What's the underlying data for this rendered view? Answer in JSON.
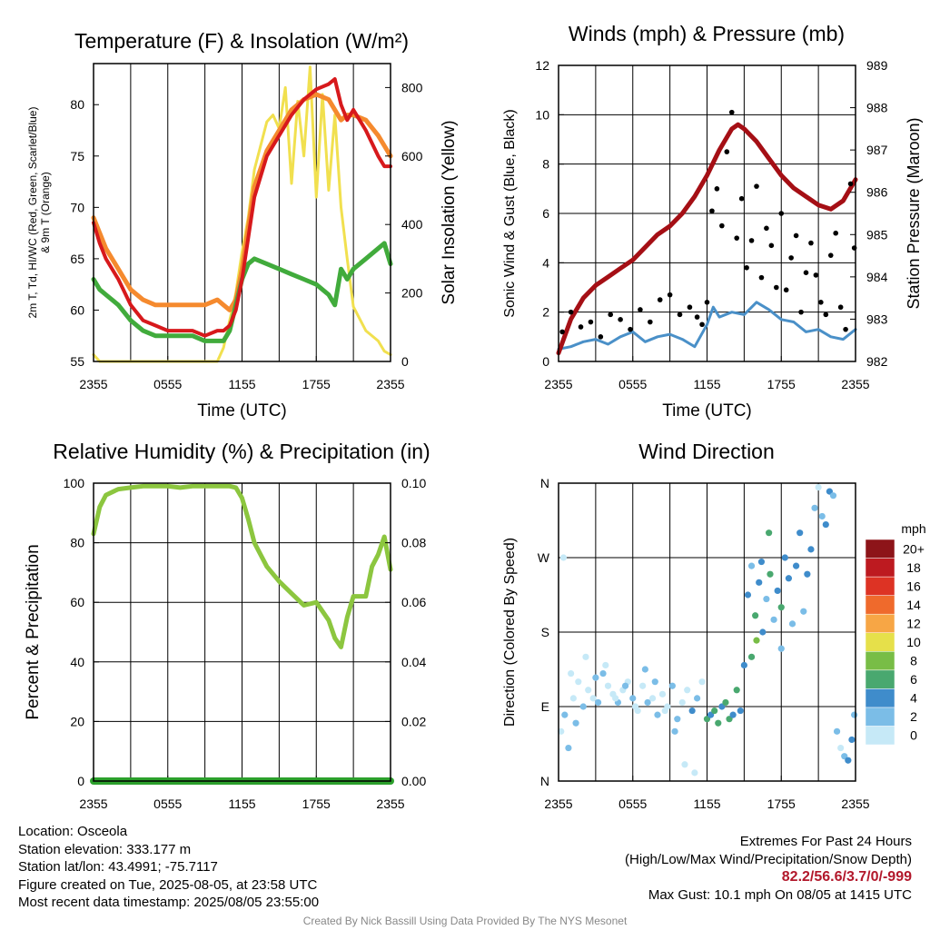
{
  "credit": "Created By Nick Bassill Using Data Provided By The NYS Mesonet",
  "info_left": [
    "Location: Osceola",
    "Station elevation: 333.177 m",
    "Station lat/lon: 43.4991; -75.7117",
    "Figure created on Tue, 2025-08-05, at 23:58 UTC",
    "Most recent data timestamp: 2025/08/05 23:55:00"
  ],
  "info_right": {
    "line1": "Extremes For Past 24 Hours",
    "line2": "(High/Low/Max Wind/Precipitation/Snow Depth)",
    "extremes": "82.2/56.6/3.7/0/-999",
    "gust": "Max Gust: 10.1 mph On 08/05 at 1415 UTC"
  },
  "colors": {
    "temp": "#d7191c",
    "dew": "#41ab3c",
    "hiwc": "#d7191c",
    "t9m": "#f58a2e",
    "solar": "#f1e04f",
    "wind": "#4a90c8",
    "gust": "#000000",
    "pressure": "#a50f15",
    "rh": "#8cc63f",
    "precip": "#2ca02c"
  },
  "chart_data": [
    {
      "id": "temp",
      "type": "line",
      "title": "Temperature (F) & Insolation (W/m²)",
      "xlabel": "Time (UTC)",
      "ylabel_left": "2m T, Td, HI/WC (Red, Green, Scarlet/Blue) & 9m T (Orange)",
      "ylabel_right": "Solar Insolation (Yellow)",
      "x_ticks": [
        "2355",
        "0555",
        "1155",
        "1755",
        "2355"
      ],
      "ylim": [
        55,
        84
      ],
      "y_ticks": [
        55,
        60,
        65,
        70,
        75,
        80
      ],
      "ylim_right": [
        0,
        870
      ],
      "y_ticks_right": [
        0,
        200,
        400,
        600,
        800
      ],
      "series": [
        {
          "key": "t9m",
          "x": [
            0,
            0.5,
            1,
            2,
            3,
            4,
            5,
            6,
            7,
            8,
            9,
            10,
            10.5,
            11,
            11.5,
            12,
            12.5,
            13,
            14,
            15,
            16,
            17,
            18,
            19,
            19.5,
            20,
            20.5,
            21,
            22,
            23,
            23.5,
            24
          ],
          "y": [
            69,
            67.5,
            66,
            64,
            62,
            61,
            60.5,
            60.5,
            60.5,
            60.5,
            60.5,
            61,
            60.5,
            60,
            61,
            64,
            68,
            72,
            75.5,
            77.5,
            79.5,
            80.5,
            81,
            80.5,
            79.5,
            78.5,
            79,
            79,
            78.5,
            77,
            76,
            75
          ]
        },
        {
          "key": "temp",
          "x": [
            0,
            0.5,
            1,
            2,
            3,
            4,
            5,
            6,
            7,
            8,
            9,
            10,
            10.5,
            11,
            11.5,
            12,
            12.5,
            13,
            14,
            15,
            16,
            17,
            18,
            19,
            19.5,
            20,
            20.5,
            21,
            22,
            23,
            23.5,
            24
          ],
          "y": [
            68.5,
            66.5,
            65,
            63,
            60.5,
            59,
            58.5,
            58,
            58,
            58,
            57.5,
            58,
            58,
            58.5,
            60,
            63,
            67,
            71,
            75,
            77,
            79,
            80.5,
            81.5,
            82,
            82.5,
            80,
            78.5,
            79.5,
            77.5,
            75,
            74,
            74
          ]
        },
        {
          "key": "dew",
          "x": [
            0,
            0.5,
            1,
            2,
            3,
            4,
            5,
            6,
            7,
            8,
            9,
            10,
            10.5,
            11,
            11.5,
            12,
            12.5,
            13,
            14,
            15,
            16,
            17,
            18,
            19,
            19.5,
            20,
            20.5,
            21,
            22,
            23,
            23.5,
            24
          ],
          "y": [
            63,
            62,
            61.5,
            60.5,
            59,
            58,
            57.5,
            57.5,
            57.5,
            57.5,
            57,
            57,
            57,
            58,
            60.5,
            63,
            64.5,
            65,
            64.5,
            64,
            63.5,
            63,
            62.5,
            61.5,
            60.5,
            64,
            63,
            64,
            65,
            66,
            66.5,
            64.5
          ]
        },
        {
          "key": "solar",
          "axis": "right",
          "x": [
            0,
            0.5,
            1,
            2,
            3,
            4,
            5,
            6,
            7,
            8,
            9,
            10,
            10.5,
            11,
            11.5,
            12,
            12.5,
            13,
            14,
            14.5,
            15,
            15.5,
            16,
            16.5,
            17,
            17.5,
            18,
            18.5,
            19,
            19.5,
            20,
            20.5,
            21,
            22,
            23,
            23.5,
            24
          ],
          "y": [
            20,
            0,
            0,
            0,
            0,
            0,
            0,
            0,
            0,
            0,
            0,
            0,
            40,
            120,
            200,
            320,
            420,
            560,
            700,
            720,
            680,
            800,
            520,
            760,
            600,
            860,
            480,
            780,
            500,
            720,
            450,
            300,
            160,
            90,
            60,
            30,
            20
          ]
        }
      ]
    },
    {
      "id": "wind",
      "type": "line",
      "title": "Winds (mph) & Pressure (mb)",
      "xlabel": "Time (UTC)",
      "ylabel_left": "Sonic Wind & Gust (Blue, Black)",
      "ylabel_right": "Station Pressure (Maroon)",
      "x_ticks": [
        "2355",
        "0555",
        "1155",
        "1755",
        "2355"
      ],
      "ylim": [
        0,
        12
      ],
      "y_ticks": [
        0,
        2,
        4,
        6,
        8,
        10,
        12
      ],
      "ylim_right": [
        982,
        989
      ],
      "y_ticks_right": [
        982,
        983,
        984,
        985,
        986,
        987,
        988,
        989
      ],
      "series": [
        {
          "key": "wind",
          "x": [
            0,
            1,
            2,
            3,
            4,
            5,
            6,
            7,
            8,
            9,
            10,
            11,
            12,
            12.5,
            13,
            14,
            15,
            16,
            17,
            18,
            19,
            20,
            21,
            22,
            23,
            24
          ],
          "y": [
            0.5,
            0.6,
            0.8,
            0.9,
            0.7,
            1.0,
            1.2,
            0.8,
            1.0,
            1.1,
            0.9,
            0.6,
            1.5,
            2.2,
            1.8,
            2.0,
            1.9,
            2.4,
            2.1,
            1.7,
            1.6,
            1.2,
            1.3,
            1.0,
            0.9,
            1.3
          ]
        },
        {
          "key": "pressure",
          "axis": "right",
          "x": [
            0,
            1,
            2,
            3,
            4,
            5,
            6,
            7,
            8,
            9,
            10,
            11,
            12,
            13,
            14,
            14.5,
            15,
            16,
            17,
            18,
            19,
            20,
            21,
            22,
            23,
            24
          ],
          "y": [
            982.2,
            983.0,
            983.5,
            983.8,
            984.0,
            984.2,
            984.4,
            984.7,
            985.0,
            985.2,
            985.5,
            985.9,
            986.4,
            987.0,
            987.5,
            987.6,
            987.5,
            987.2,
            986.8,
            986.4,
            986.1,
            985.9,
            985.7,
            985.6,
            985.8,
            986.3
          ]
        }
      ],
      "gust_points": {
        "x": [
          0.3,
          1.0,
          1.8,
          2.6,
          3.4,
          4.2,
          5.0,
          5.8,
          6.6,
          7.4,
          8.2,
          9.0,
          9.8,
          10.6,
          11.2,
          11.6,
          12.0,
          12.4,
          12.8,
          13.2,
          13.6,
          14.0,
          14.4,
          14.8,
          15.2,
          15.6,
          16.0,
          16.4,
          16.8,
          17.2,
          17.6,
          18.0,
          18.4,
          18.8,
          19.2,
          19.6,
          20.0,
          20.4,
          20.8,
          21.2,
          21.6,
          22.0,
          22.4,
          22.8,
          23.2,
          23.6,
          23.9
        ],
        "y": [
          1.2,
          2.0,
          1.4,
          1.6,
          1.0,
          1.9,
          1.7,
          1.3,
          2.1,
          1.6,
          2.5,
          2.7,
          1.9,
          2.2,
          1.8,
          1.5,
          2.4,
          6.1,
          7.0,
          5.5,
          8.5,
          10.1,
          5.0,
          6.6,
          3.8,
          4.9,
          7.1,
          3.4,
          5.4,
          4.7,
          3.0,
          6.0,
          2.9,
          4.2,
          5.1,
          2.0,
          3.6,
          4.8,
          3.5,
          2.4,
          1.9,
          4.3,
          5.2,
          2.2,
          1.3,
          7.2,
          4.6
        ]
      }
    },
    {
      "id": "rh",
      "type": "line",
      "title": "Relative Humidity (%) & Precipitation (in)",
      "xlabel": "",
      "ylabel_left": "Percent & Precipitation",
      "x_ticks": [
        "2355",
        "0555",
        "1155",
        "1755",
        "2355"
      ],
      "ylim": [
        0,
        100
      ],
      "y_ticks": [
        0,
        20,
        40,
        60,
        80,
        100
      ],
      "ylim_right": [
        0,
        0.1
      ],
      "y_ticks_right": [
        "0.00",
        "0.02",
        "0.04",
        "0.06",
        "0.08",
        "0.10"
      ],
      "series": [
        {
          "key": "rh",
          "x": [
            0,
            0.5,
            1,
            2,
            3,
            4,
            5,
            6,
            7,
            8,
            9,
            10,
            11,
            11.5,
            12,
            12.5,
            13,
            14,
            15,
            16,
            16.5,
            17,
            18,
            19,
            19.5,
            20,
            20.5,
            21,
            22,
            22.5,
            23,
            23.5,
            24
          ],
          "y": [
            83,
            92,
            96,
            98,
            98.5,
            99,
            99,
            99,
            98.5,
            99,
            99,
            99,
            99,
            98.5,
            95,
            88,
            80,
            72,
            67,
            63,
            61,
            59,
            60,
            54,
            48,
            45,
            55,
            62,
            62,
            72,
            76,
            82,
            71
          ]
        },
        {
          "key": "precip",
          "x": [
            0,
            24
          ],
          "y": [
            0,
            0
          ]
        }
      ]
    },
    {
      "id": "dir",
      "type": "scatter",
      "title": "Wind Direction",
      "ylabel_left": "Direction (Colored By Speed)",
      "x_ticks": [
        "2355",
        "0555",
        "1155",
        "1755",
        "2355"
      ],
      "y_ticks": [
        "N",
        "E",
        "S",
        "W",
        "N"
      ],
      "ylim": [
        0,
        360
      ],
      "legend_title": "mph",
      "legend_labels": [
        "0",
        "2",
        "4",
        "6",
        "8",
        "10",
        "12",
        "14",
        "16",
        "18",
        "20+"
      ],
      "legend_colors": [
        "#c6e9f7",
        "#7bbde7",
        "#3f8ccb",
        "#49a86f",
        "#78bd46",
        "#e6e04a",
        "#f7a645",
        "#ef6a2c",
        "#dd3324",
        "#bd1a20",
        "#8d1419"
      ],
      "points": {
        "x": [
          0.2,
          0.5,
          0.8,
          1.2,
          1.6,
          2.0,
          2.4,
          2.8,
          3.2,
          3.6,
          4.0,
          4.4,
          4.8,
          5.2,
          5.6,
          6.0,
          6.4,
          6.8,
          7.2,
          7.6,
          8.0,
          8.4,
          8.8,
          9.2,
          9.6,
          10.0,
          10.4,
          10.8,
          11.2,
          11.6,
          12.0,
          12.3,
          12.6,
          12.9,
          13.2,
          13.5,
          13.8,
          14.1,
          14.4,
          14.7,
          15.0,
          15.3,
          15.6,
          15.9,
          16.2,
          16.5,
          16.8,
          17.1,
          17.4,
          17.7,
          18.0,
          18.3,
          18.6,
          18.9,
          19.2,
          19.5,
          19.8,
          20.1,
          20.4,
          20.7,
          21.0,
          21.3,
          21.6,
          21.9,
          22.2,
          22.5,
          22.8,
          23.1,
          23.4,
          23.7,
          23.9,
          0.4,
          1.0,
          1.4,
          2.2,
          3.0,
          3.8,
          4.6,
          5.4,
          6.2,
          7.0,
          7.8,
          8.6,
          9.4,
          10.2,
          11.0,
          15.6,
          16.0,
          16.4,
          17.0,
          18.0
        ],
        "y": [
          60,
          80,
          40,
          100,
          120,
          90,
          110,
          100,
          95,
          130,
          115,
          105,
          95,
          110,
          120,
          100,
          85,
          115,
          95,
          100,
          80,
          105,
          90,
          115,
          75,
          95,
          110,
          85,
          100,
          120,
          75,
          80,
          85,
          70,
          90,
          95,
          75,
          80,
          110,
          85,
          140,
          225,
          260,
          200,
          240,
          180,
          220,
          250,
          195,
          230,
          210,
          270,
          245,
          190,
          260,
          300,
          205,
          250,
          280,
          330,
          355,
          320,
          310,
          350,
          345,
          60,
          40,
          30,
          25,
          50,
          80,
          270,
          130,
          70,
          150,
          125,
          140,
          100,
          115,
          90,
          135,
          120,
          85,
          60,
          20,
          10,
          150,
          170,
          265,
          300,
          160
        ],
        "speed": [
          0,
          1,
          1,
          0,
          0,
          1,
          0,
          0,
          1,
          1,
          0,
          0,
          1,
          0,
          0,
          1,
          0,
          0,
          1,
          0,
          1,
          0,
          0,
          1,
          1,
          0,
          0,
          2,
          1,
          0,
          3,
          2,
          3,
          3,
          2,
          3,
          3,
          2,
          3,
          2,
          2,
          2,
          1,
          3,
          2,
          2,
          1,
          3,
          1,
          2,
          3,
          2,
          2,
          1,
          2,
          2,
          1,
          2,
          2,
          1,
          0,
          1,
          2,
          2,
          1,
          1,
          0,
          1,
          2,
          2,
          1,
          0,
          0,
          1,
          0,
          1,
          0,
          0,
          1,
          0,
          1,
          1,
          0,
          1,
          0,
          0,
          3,
          4,
          2,
          3,
          1
        ]
      }
    }
  ]
}
